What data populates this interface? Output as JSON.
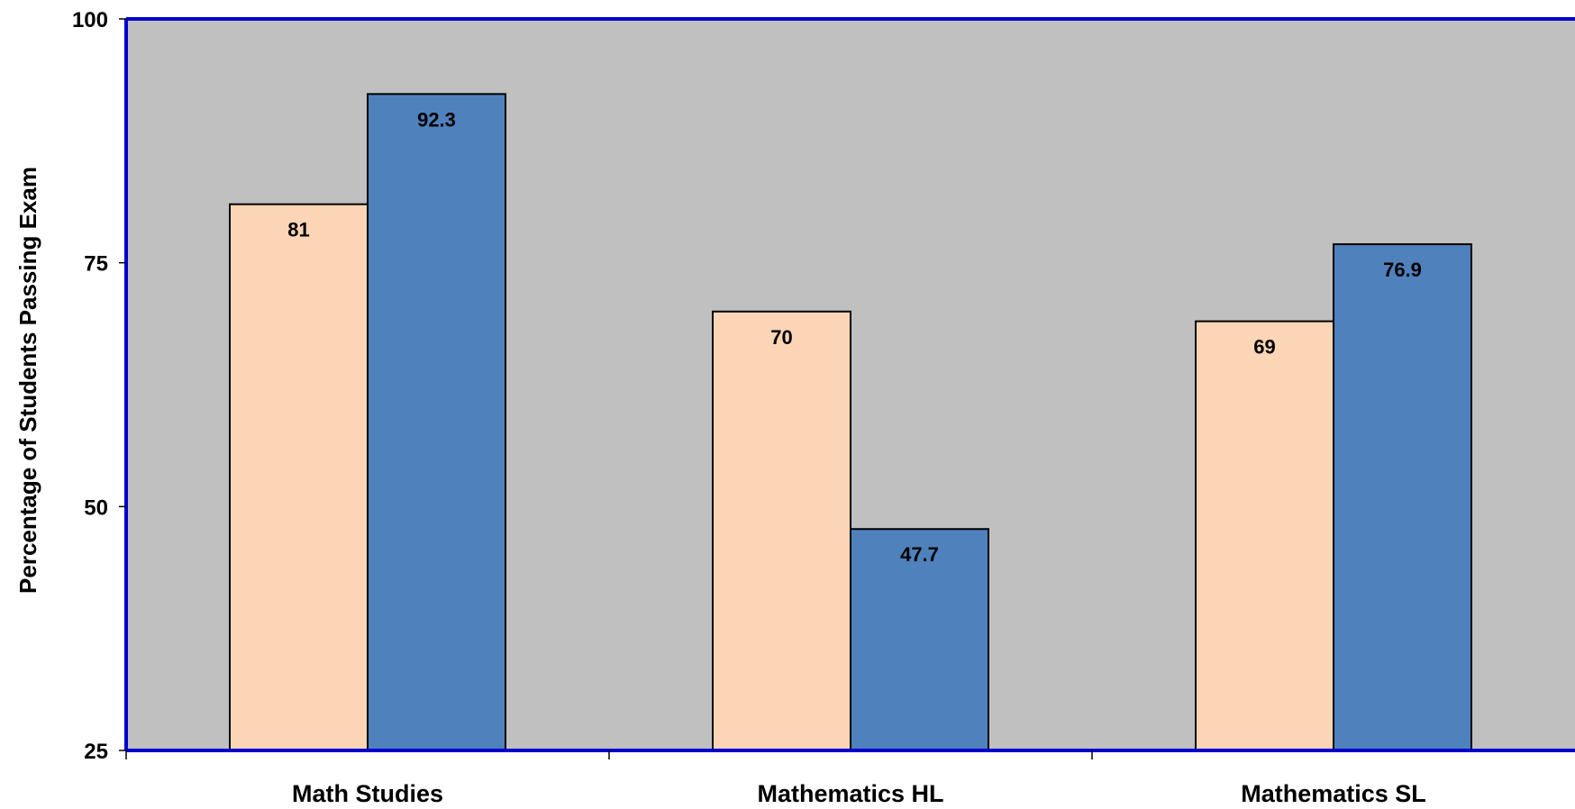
{
  "chart_data": {
    "type": "bar",
    "title": "",
    "xlabel": "",
    "ylabel": "Percentage of Students Passing Exam",
    "categories": [
      "Math Studies",
      "Mathematics HL",
      "Mathematics SL"
    ],
    "series": [
      {
        "values": [
          81,
          70,
          69
        ],
        "color": "#fbd5b5"
      },
      {
        "values": [
          92.3,
          47.7,
          76.9
        ],
        "color": "#4f81bd"
      }
    ],
    "ylim": [
      25,
      100
    ],
    "yticks": [
      "25",
      "50",
      "75",
      "100"
    ],
    "data_labels": [
      [
        "81",
        "70",
        "69"
      ],
      [
        "92.3",
        "47.7",
        "76.9"
      ]
    ],
    "legend": "none",
    "grid": false,
    "plot_background": "#c0c0c0",
    "axis_color": "#0000cc"
  }
}
